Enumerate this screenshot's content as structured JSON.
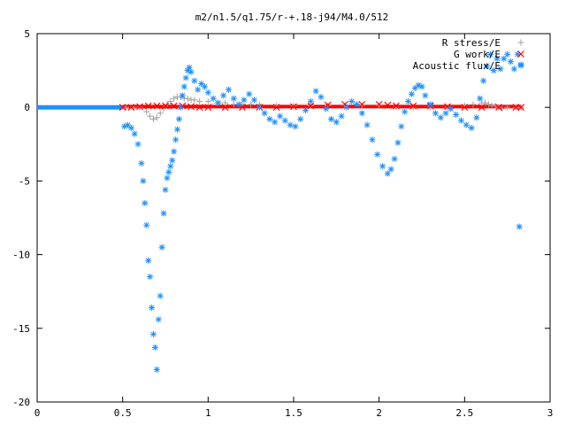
{
  "chart_data": {
    "type": "scatter",
    "title": "m2/n1.5/q1.75/r-+.18-j94/M4.0/512",
    "xlim": [
      0,
      3
    ],
    "ylim": [
      -20,
      5
    ],
    "x_ticks": [
      0,
      0.5,
      1,
      1.5,
      2,
      2.5,
      3
    ],
    "x_tick_labels": [
      "0",
      "0.5",
      "1",
      "1.5",
      "2",
      "2.5",
      "3"
    ],
    "y_ticks": [
      5,
      0,
      -5,
      -10,
      -15,
      -20
    ],
    "y_tick_labels": [
      "5",
      "0",
      "-5",
      "-10",
      "-15",
      "-20"
    ],
    "grid": false,
    "legend_position": "top-right",
    "series": [
      {
        "name": "R stress/E",
        "marker": "plus",
        "color": "#a0a0a0",
        "x": [
          0.52,
          0.56,
          0.6,
          0.64,
          0.66,
          0.68,
          0.7,
          0.72,
          0.74,
          0.76,
          0.78,
          0.8,
          0.82,
          0.84,
          0.86,
          0.88,
          0.9,
          0.92,
          0.95,
          1.0,
          1.05,
          1.1,
          1.15,
          1.2,
          1.25,
          1.3,
          1.4,
          1.5,
          1.6,
          1.7,
          1.8,
          1.9,
          2.0,
          2.1,
          2.2,
          2.3,
          2.4,
          2.5,
          2.55,
          2.6,
          2.62,
          2.64,
          2.66,
          2.68,
          2.7,
          2.72,
          2.75,
          2.8,
          2.83
        ],
        "y": [
          0.0,
          0.0,
          0.0,
          -0.3,
          -0.6,
          -0.8,
          -0.7,
          -0.4,
          -0.1,
          0.2,
          0.4,
          0.6,
          0.7,
          0.7,
          0.6,
          0.6,
          0.5,
          0.5,
          0.4,
          0.4,
          0.3,
          0.3,
          0.2,
          0.2,
          0.2,
          0.2,
          0.1,
          0.1,
          0.1,
          0.1,
          0.1,
          0.1,
          0.1,
          0.0,
          0.0,
          0.0,
          0.0,
          0.1,
          0.2,
          0.3,
          0.3,
          0.2,
          0.1,
          0.1,
          0.0,
          -0.1,
          0.0,
          0.0,
          0.0
        ]
      },
      {
        "name": "G work/E",
        "marker": "x",
        "color": "#ff0000",
        "x": [
          0.5,
          0.55,
          0.6,
          0.65,
          0.7,
          0.75,
          0.8,
          0.85,
          0.9,
          0.95,
          1.0,
          1.1,
          1.2,
          1.3,
          1.4,
          1.5,
          1.6,
          1.7,
          1.8,
          1.9,
          2.0,
          2.05,
          2.1,
          2.2,
          2.3,
          2.4,
          2.5,
          2.6,
          2.7,
          2.8,
          2.83
        ],
        "y": [
          0.0,
          0.0,
          0.05,
          0.1,
          0.1,
          0.1,
          0.1,
          0.1,
          0.05,
          0.0,
          0.0,
          0.0,
          0.0,
          0.0,
          0.0,
          0.05,
          0.1,
          0.15,
          0.2,
          0.2,
          0.2,
          0.15,
          0.1,
          0.1,
          0.1,
          0.05,
          0.0,
          0.0,
          0.0,
          0.0,
          0.0
        ]
      },
      {
        "name": "Acoustic flux/E",
        "marker": "star",
        "color": "#1e90ff",
        "x": [
          0.51,
          0.53,
          0.55,
          0.57,
          0.59,
          0.61,
          0.62,
          0.63,
          0.64,
          0.65,
          0.66,
          0.67,
          0.68,
          0.69,
          0.7,
          0.71,
          0.72,
          0.73,
          0.74,
          0.75,
          0.76,
          0.77,
          0.78,
          0.79,
          0.8,
          0.81,
          0.82,
          0.83,
          0.84,
          0.85,
          0.86,
          0.87,
          0.88,
          0.89,
          0.9,
          0.92,
          0.94,
          0.96,
          0.98,
          1.0,
          1.03,
          1.06,
          1.09,
          1.12,
          1.15,
          1.18,
          1.21,
          1.24,
          1.27,
          1.3,
          1.33,
          1.36,
          1.39,
          1.42,
          1.45,
          1.48,
          1.51,
          1.54,
          1.57,
          1.6,
          1.63,
          1.66,
          1.69,
          1.72,
          1.75,
          1.78,
          1.81,
          1.84,
          1.87,
          1.9,
          1.93,
          1.96,
          1.99,
          2.02,
          2.05,
          2.07,
          2.09,
          2.11,
          2.13,
          2.15,
          2.17,
          2.19,
          2.21,
          2.23,
          2.25,
          2.27,
          2.3,
          2.33,
          2.36,
          2.39,
          2.42,
          2.45,
          2.48,
          2.51,
          2.54,
          2.57,
          2.59,
          2.61,
          2.63,
          2.65,
          2.67,
          2.69,
          2.71,
          2.73,
          2.75,
          2.77,
          2.79,
          2.81,
          2.83,
          2.82
        ],
        "y": [
          -1.3,
          -1.2,
          -1.4,
          -1.8,
          -2.5,
          -3.8,
          -5.0,
          -6.5,
          -8.0,
          -10.4,
          -11.5,
          -13.6,
          -15.4,
          -16.3,
          -17.8,
          -14.4,
          -12.8,
          -9.5,
          -7.2,
          -5.6,
          -4.8,
          -4.4,
          -4.0,
          -3.6,
          -3.0,
          -2.2,
          -1.5,
          -0.8,
          0.0,
          0.8,
          1.4,
          2.0,
          2.5,
          2.7,
          2.4,
          1.8,
          1.2,
          1.6,
          1.4,
          1.0,
          0.6,
          0.3,
          0.8,
          1.2,
          0.6,
          0.2,
          0.5,
          0.9,
          0.5,
          0.0,
          -0.4,
          -0.8,
          -1.0,
          -0.6,
          -0.9,
          -1.2,
          -1.3,
          -0.8,
          -0.2,
          0.4,
          1.1,
          0.7,
          -0.1,
          -0.8,
          -1.0,
          -0.6,
          0.0,
          0.4,
          0.2,
          -0.4,
          -1.2,
          -2.2,
          -3.2,
          -4.0,
          -4.5,
          -4.2,
          -3.5,
          -2.4,
          -1.3,
          -0.3,
          0.4,
          0.9,
          1.3,
          1.5,
          1.4,
          0.8,
          0.2,
          -0.4,
          -0.7,
          -0.4,
          -0.1,
          -0.5,
          -0.9,
          -1.2,
          -1.4,
          -0.7,
          0.6,
          1.8,
          2.8,
          3.6,
          2.5,
          3.3,
          2.6,
          3.3,
          3.6,
          3.1,
          2.6,
          3.6,
          2.9,
          -8.1
        ]
      }
    ]
  }
}
